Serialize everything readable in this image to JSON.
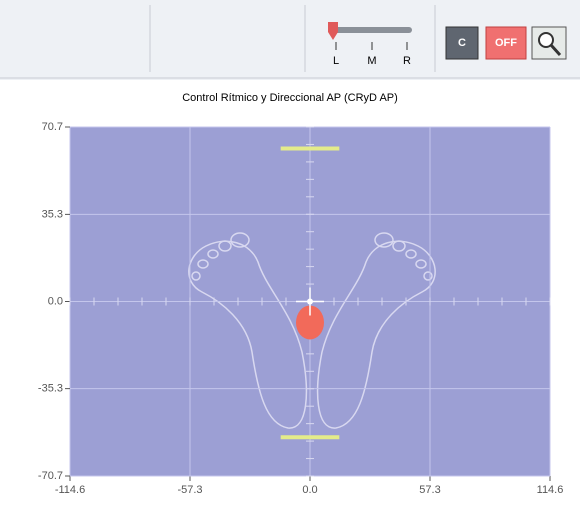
{
  "toolbar": {
    "slider_labels": [
      "L",
      "M",
      "R"
    ],
    "buttons": [
      "C",
      "OFF"
    ]
  },
  "plot": {
    "title": "Control Rítmico y Direccional AP (CRyD AP)",
    "xlim": [
      -114.6,
      114.6
    ],
    "ylim": [
      -70.7,
      70.7
    ],
    "xticks": [
      -114.6,
      -57.3,
      {
        "value": 0,
        "label": "0.0"
      },
      57.3,
      114.6
    ],
    "yticks": [
      70.7,
      35.3,
      {
        "value": 0,
        "label": "0.0"
      },
      -35.3,
      -70.7
    ],
    "upper_limit": {
      "x": [
        -14,
        14
      ],
      "y": 62
    },
    "lower_limit": {
      "x": [
        -14,
        14
      ],
      "y": -55
    },
    "cursor": {
      "x": 0,
      "y": 0
    },
    "center_of_pressure": {
      "x": 0,
      "y": -8.5
    }
  }
}
